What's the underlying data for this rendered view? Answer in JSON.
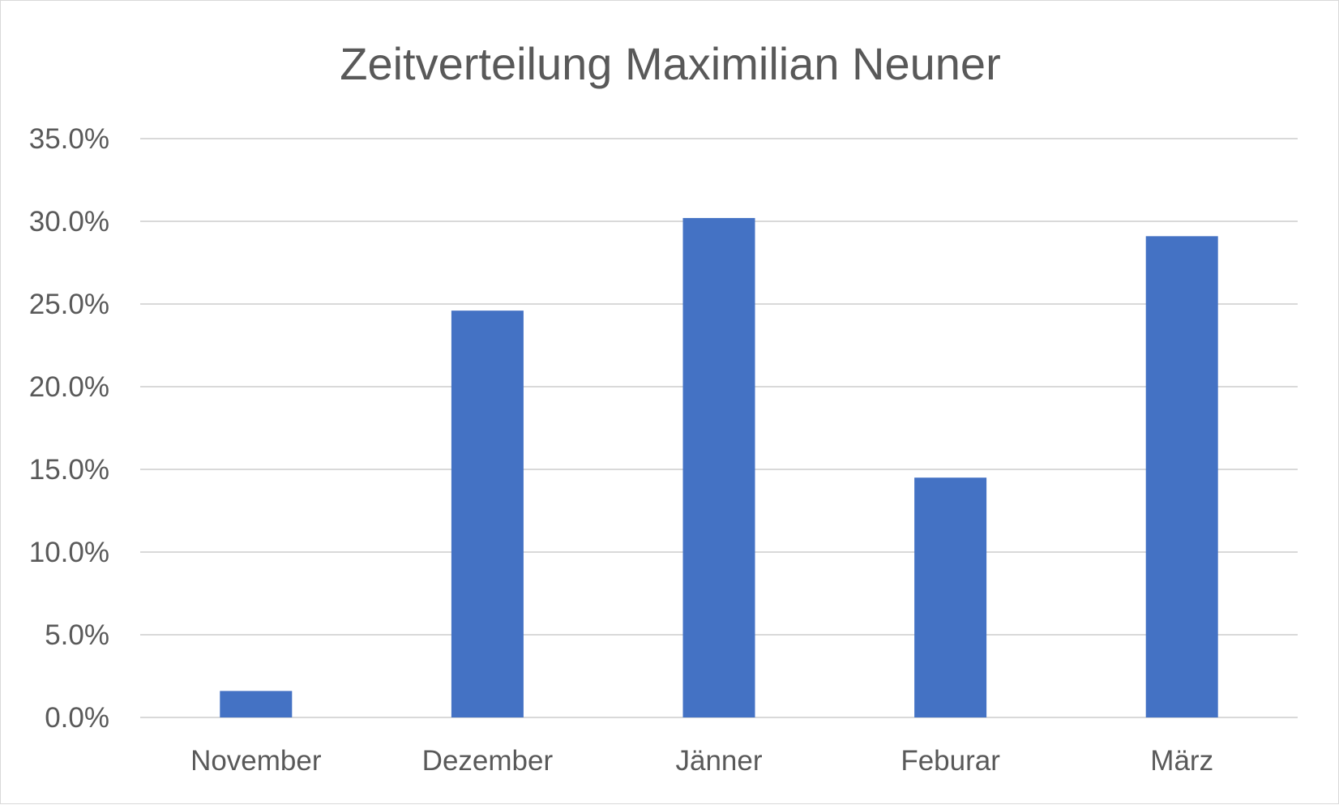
{
  "chart_data": {
    "type": "bar",
    "title": "Zeitverteilung Maximilian Neuner",
    "categories": [
      "November",
      "Dezember",
      "Jänner",
      "Feburar",
      "März"
    ],
    "series": [
      {
        "values": [
          1.6,
          24.6,
          30.2,
          14.5,
          29.1
        ],
        "color": "#4472c4"
      }
    ],
    "value_unit": "percent",
    "ylim": [
      0,
      35
    ],
    "yticks": [
      0,
      5,
      10,
      15,
      20,
      25,
      30,
      35
    ],
    "ytick_labels": [
      "0.0%",
      "5.0%",
      "10.0%",
      "15.0%",
      "20.0%",
      "25.0%",
      "30.0%",
      "35.0%"
    ],
    "xlabel": "",
    "ylabel": "",
    "grid": true,
    "legend": "none"
  }
}
